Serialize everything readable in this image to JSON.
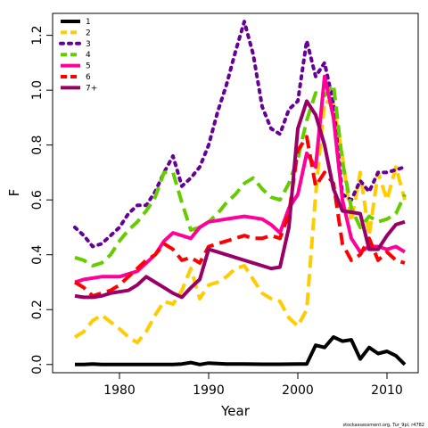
{
  "chart_data": {
    "type": "line",
    "xlabel": "Year",
    "ylabel": "F",
    "xlim": [
      1972.5,
      2013.5
    ],
    "ylim": [
      -0.03,
      1.28
    ],
    "xticks": [
      1980,
      1990,
      2000,
      2010
    ],
    "yticks": [
      0.0,
      0.2,
      0.4,
      0.6,
      0.8,
      1.0,
      1.2
    ],
    "ytick_labels": [
      "0.0",
      "0.2",
      "0.4",
      "0.6",
      "0.8",
      "1.0",
      "1.2"
    ],
    "legend_position": "top-left",
    "grid": false,
    "series": [
      {
        "name": "1",
        "color": "#000000",
        "dash": "solid",
        "points": [
          [
            1975,
            0.0
          ],
          [
            1976,
            0.0
          ],
          [
            1977,
            0.002
          ],
          [
            1978,
            0.0
          ],
          [
            1980,
            0.0
          ],
          [
            1982,
            0.0
          ],
          [
            1984,
            0.0
          ],
          [
            1986,
            0.0
          ],
          [
            1987,
            0.002
          ],
          [
            1988,
            0.007
          ],
          [
            1989,
            0.0
          ],
          [
            1990,
            0.005
          ],
          [
            1992,
            0.002
          ],
          [
            1994,
            0.002
          ],
          [
            1996,
            0.001
          ],
          [
            1998,
            0.001
          ],
          [
            2000,
            0.002
          ],
          [
            2001,
            0.002
          ],
          [
            2002,
            0.07
          ],
          [
            2003,
            0.062
          ],
          [
            2004,
            0.1
          ],
          [
            2005,
            0.085
          ],
          [
            2006,
            0.09
          ],
          [
            2007,
            0.02
          ],
          [
            2008,
            0.062
          ],
          [
            2009,
            0.04
          ],
          [
            2010,
            0.048
          ],
          [
            2011,
            0.032
          ],
          [
            2012,
            0.0
          ]
        ]
      },
      {
        "name": "2",
        "color": "#ffcc00",
        "dash": "dashed",
        "points": [
          [
            1975,
            0.1
          ],
          [
            1976,
            0.12
          ],
          [
            1977,
            0.16
          ],
          [
            1978,
            0.18
          ],
          [
            1980,
            0.13
          ],
          [
            1981,
            0.1
          ],
          [
            1982,
            0.08
          ],
          [
            1983,
            0.12
          ],
          [
            1984,
            0.18
          ],
          [
            1985,
            0.23
          ],
          [
            1986,
            0.22
          ],
          [
            1987,
            0.27
          ],
          [
            1988,
            0.35
          ],
          [
            1989,
            0.24
          ],
          [
            1990,
            0.29
          ],
          [
            1991,
            0.3
          ],
          [
            1992,
            0.32
          ],
          [
            1993,
            0.35
          ],
          [
            1994,
            0.36
          ],
          [
            1995,
            0.31
          ],
          [
            1996,
            0.26
          ],
          [
            1997,
            0.24
          ],
          [
            1998,
            0.23
          ],
          [
            1999,
            0.17
          ],
          [
            2000,
            0.14
          ],
          [
            2001,
            0.2
          ],
          [
            2002,
            0.62
          ],
          [
            2003,
            0.96
          ],
          [
            2004,
            0.95
          ],
          [
            2005,
            0.76
          ],
          [
            2006,
            0.52
          ],
          [
            2007,
            0.7
          ],
          [
            2008,
            0.47
          ],
          [
            2009,
            0.7
          ],
          [
            2010,
            0.6
          ],
          [
            2011,
            0.72
          ],
          [
            2012,
            0.6
          ]
        ]
      },
      {
        "name": "3",
        "color": "#660099",
        "dash": "dotted",
        "points": [
          [
            1975,
            0.5
          ],
          [
            1976,
            0.47
          ],
          [
            1977,
            0.43
          ],
          [
            1978,
            0.44
          ],
          [
            1979,
            0.47
          ],
          [
            1980,
            0.5
          ],
          [
            1981,
            0.55
          ],
          [
            1982,
            0.58
          ],
          [
            1983,
            0.58
          ],
          [
            1984,
            0.63
          ],
          [
            1985,
            0.7
          ],
          [
            1986,
            0.76
          ],
          [
            1987,
            0.65
          ],
          [
            1988,
            0.68
          ],
          [
            1989,
            0.72
          ],
          [
            1990,
            0.8
          ],
          [
            1991,
            0.92
          ],
          [
            1992,
            1.02
          ],
          [
            1993,
            1.14
          ],
          [
            1994,
            1.25
          ],
          [
            1995,
            1.13
          ],
          [
            1996,
            0.94
          ],
          [
            1997,
            0.86
          ],
          [
            1998,
            0.84
          ],
          [
            1999,
            0.93
          ],
          [
            2000,
            0.96
          ],
          [
            2001,
            1.18
          ],
          [
            2002,
            1.05
          ],
          [
            2003,
            1.1
          ],
          [
            2004,
            0.95
          ],
          [
            2005,
            0.62
          ],
          [
            2006,
            0.6
          ],
          [
            2007,
            0.67
          ],
          [
            2008,
            0.63
          ],
          [
            2009,
            0.7
          ],
          [
            2010,
            0.7
          ],
          [
            2011,
            0.71
          ],
          [
            2012,
            0.72
          ]
        ]
      },
      {
        "name": "4",
        "color": "#66cc00",
        "dash": "dashed",
        "points": [
          [
            1975,
            0.39
          ],
          [
            1976,
            0.38
          ],
          [
            1977,
            0.36
          ],
          [
            1978,
            0.37
          ],
          [
            1979,
            0.4
          ],
          [
            1980,
            0.45
          ],
          [
            1981,
            0.49
          ],
          [
            1982,
            0.52
          ],
          [
            1983,
            0.56
          ],
          [
            1984,
            0.61
          ],
          [
            1985,
            0.7
          ],
          [
            1986,
            0.7
          ],
          [
            1987,
            0.59
          ],
          [
            1988,
            0.49
          ],
          [
            1989,
            0.5
          ],
          [
            1990,
            0.52
          ],
          [
            1991,
            0.55
          ],
          [
            1992,
            0.59
          ],
          [
            1993,
            0.62
          ],
          [
            1994,
            0.66
          ],
          [
            1995,
            0.68
          ],
          [
            1996,
            0.64
          ],
          [
            1997,
            0.61
          ],
          [
            1998,
            0.6
          ],
          [
            1999,
            0.66
          ],
          [
            2000,
            0.75
          ],
          [
            2001,
            0.89
          ],
          [
            2002,
            0.99
          ],
          [
            2003,
            0.98
          ],
          [
            2004,
            1.02
          ],
          [
            2005,
            0.74
          ],
          [
            2006,
            0.57
          ],
          [
            2007,
            0.5
          ],
          [
            2008,
            0.54
          ],
          [
            2009,
            0.52
          ],
          [
            2010,
            0.53
          ],
          [
            2011,
            0.55
          ],
          [
            2012,
            0.62
          ]
        ]
      },
      {
        "name": "5",
        "color": "#ff0099",
        "dash": "solid",
        "points": [
          [
            1975,
            0.3
          ],
          [
            1976,
            0.31
          ],
          [
            1978,
            0.32
          ],
          [
            1980,
            0.32
          ],
          [
            1982,
            0.34
          ],
          [
            1984,
            0.4
          ],
          [
            1985,
            0.45
          ],
          [
            1986,
            0.48
          ],
          [
            1988,
            0.46
          ],
          [
            1989,
            0.5
          ],
          [
            1990,
            0.52
          ],
          [
            1992,
            0.53
          ],
          [
            1994,
            0.54
          ],
          [
            1996,
            0.53
          ],
          [
            1997,
            0.51
          ],
          [
            1998,
            0.48
          ],
          [
            1999,
            0.57
          ],
          [
            2000,
            0.62
          ],
          [
            2001,
            0.77
          ],
          [
            2002,
            0.72
          ],
          [
            2003,
            1.05
          ],
          [
            2004,
            0.9
          ],
          [
            2005,
            0.6
          ],
          [
            2006,
            0.46
          ],
          [
            2007,
            0.41
          ],
          [
            2008,
            0.43
          ],
          [
            2009,
            0.43
          ],
          [
            2010,
            0.42
          ],
          [
            2011,
            0.43
          ],
          [
            2012,
            0.41
          ]
        ]
      },
      {
        "name": "6",
        "color": "#ff0000",
        "dash": "dashed",
        "points": [
          [
            1975,
            0.3
          ],
          [
            1976,
            0.28
          ],
          [
            1977,
            0.25
          ],
          [
            1978,
            0.26
          ],
          [
            1979,
            0.27
          ],
          [
            1980,
            0.29
          ],
          [
            1981,
            0.32
          ],
          [
            1982,
            0.35
          ],
          [
            1983,
            0.38
          ],
          [
            1984,
            0.4
          ],
          [
            1985,
            0.44
          ],
          [
            1986,
            0.42
          ],
          [
            1987,
            0.38
          ],
          [
            1988,
            0.39
          ],
          [
            1989,
            0.37
          ],
          [
            1990,
            0.43
          ],
          [
            1991,
            0.44
          ],
          [
            1992,
            0.45
          ],
          [
            1993,
            0.46
          ],
          [
            1994,
            0.47
          ],
          [
            1995,
            0.46
          ],
          [
            1996,
            0.46
          ],
          [
            1997,
            0.47
          ],
          [
            1998,
            0.46
          ],
          [
            1999,
            0.55
          ],
          [
            2000,
            0.78
          ],
          [
            2001,
            0.83
          ],
          [
            2002,
            0.65
          ],
          [
            2003,
            0.7
          ],
          [
            2004,
            0.66
          ],
          [
            2005,
            0.44
          ],
          [
            2006,
            0.38
          ],
          [
            2007,
            0.4
          ],
          [
            2008,
            0.46
          ],
          [
            2009,
            0.38
          ],
          [
            2010,
            0.41
          ],
          [
            2011,
            0.38
          ],
          [
            2012,
            0.37
          ]
        ]
      },
      {
        "name": "7+",
        "color": "#990066",
        "dash": "solid",
        "points": [
          [
            1975,
            0.25
          ],
          [
            1976,
            0.245
          ],
          [
            1977,
            0.245
          ],
          [
            1978,
            0.25
          ],
          [
            1979,
            0.26
          ],
          [
            1980,
            0.265
          ],
          [
            1981,
            0.27
          ],
          [
            1982,
            0.29
          ],
          [
            1983,
            0.32
          ],
          [
            1984,
            0.3
          ],
          [
            1985,
            0.28
          ],
          [
            1986,
            0.26
          ],
          [
            1987,
            0.245
          ],
          [
            1988,
            0.28
          ],
          [
            1989,
            0.31
          ],
          [
            1990,
            0.42
          ],
          [
            1991,
            0.41
          ],
          [
            1992,
            0.4
          ],
          [
            1993,
            0.39
          ],
          [
            1994,
            0.38
          ],
          [
            1995,
            0.37
          ],
          [
            1996,
            0.36
          ],
          [
            1997,
            0.35
          ],
          [
            1998,
            0.355
          ],
          [
            1999,
            0.5
          ],
          [
            2000,
            0.86
          ],
          [
            2001,
            0.96
          ],
          [
            2002,
            0.91
          ],
          [
            2003,
            0.8
          ],
          [
            2004,
            0.64
          ],
          [
            2005,
            0.56
          ],
          [
            2006,
            0.555
          ],
          [
            2007,
            0.55
          ],
          [
            2008,
            0.42
          ],
          [
            2009,
            0.42
          ],
          [
            2010,
            0.47
          ],
          [
            2011,
            0.51
          ],
          [
            2012,
            0.52
          ]
        ]
      }
    ]
  },
  "footer": {
    "credit": "stockassessment.org, Tur_9pl, r4782"
  }
}
